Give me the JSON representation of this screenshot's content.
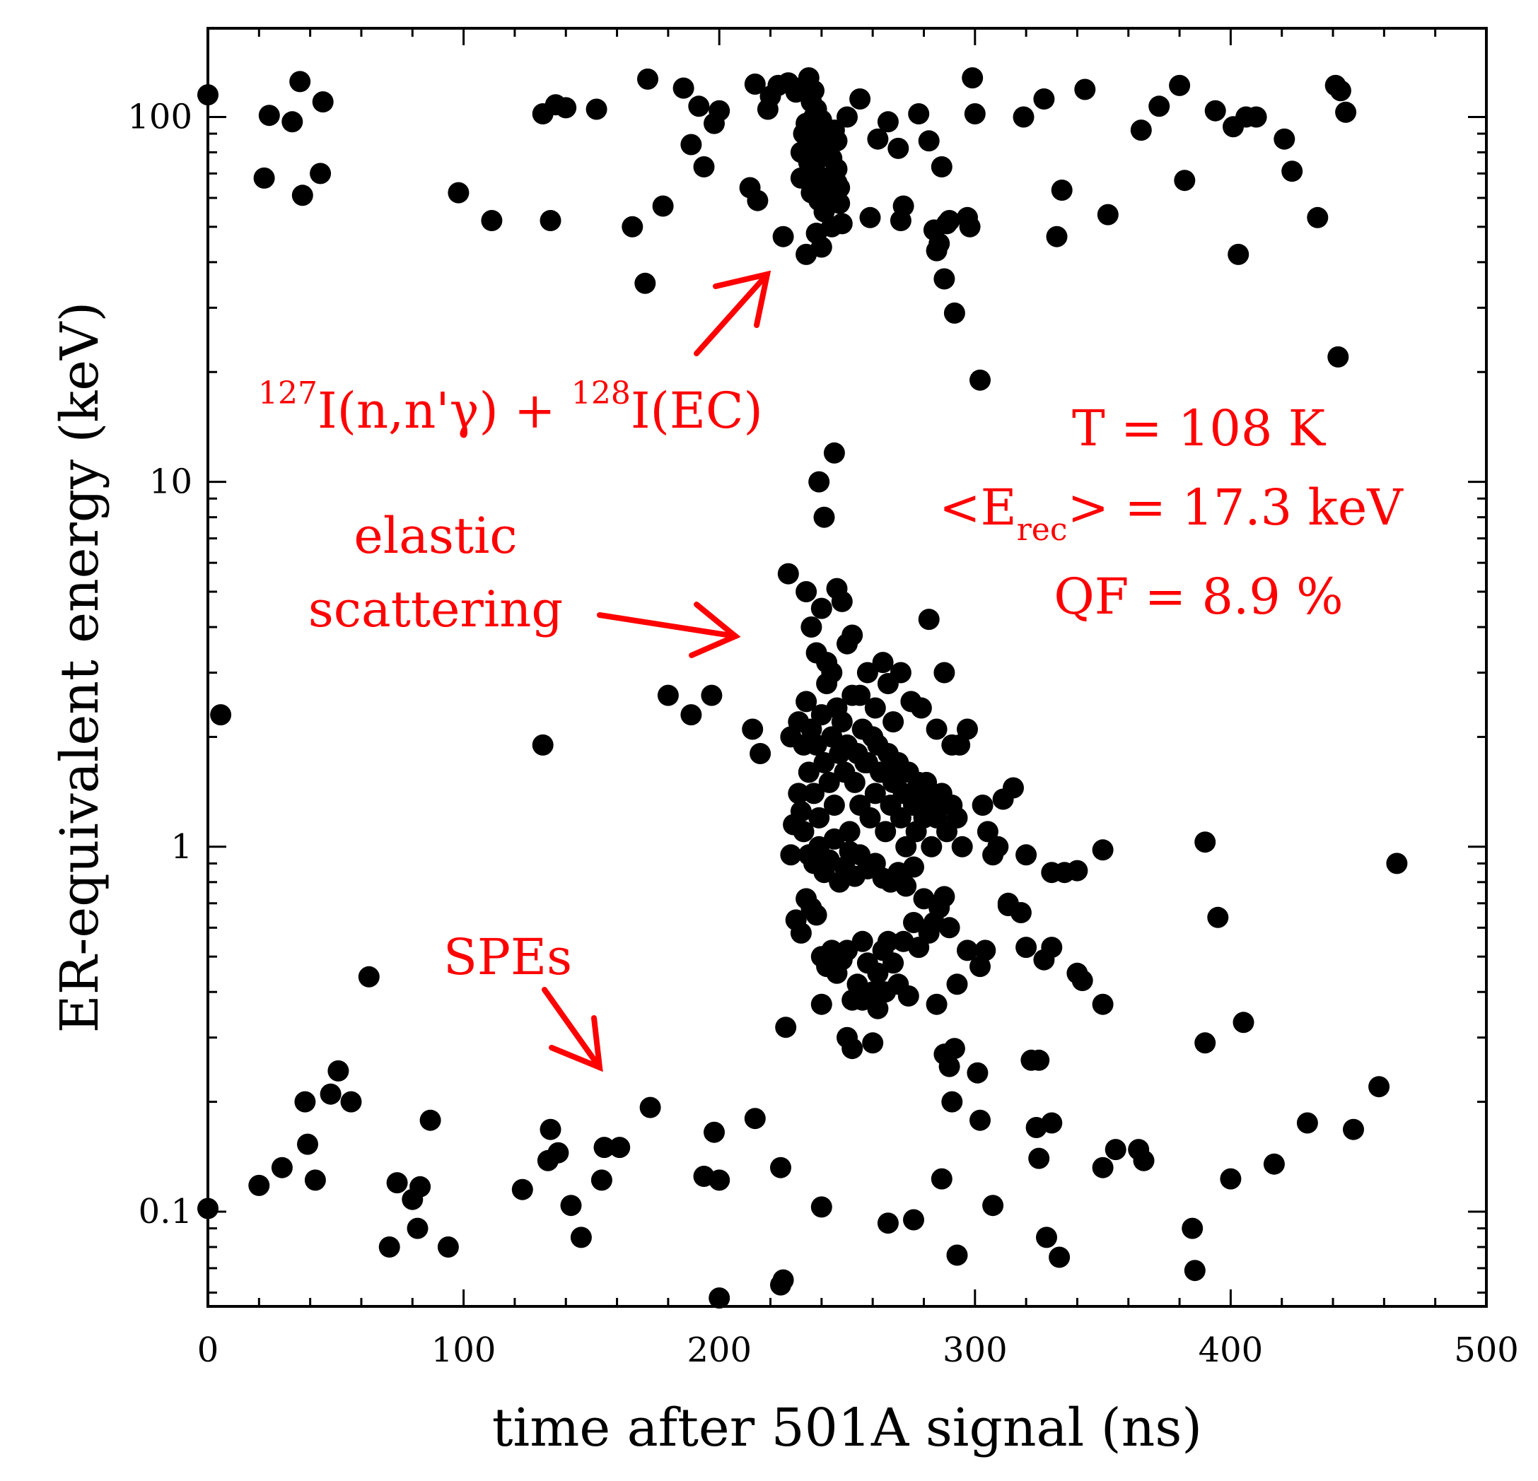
{
  "chart_data": {
    "type": "scatter",
    "title": "",
    "xlabel": "time after 501A signal (ns)",
    "ylabel": "ER-equivalent energy (keV)",
    "xlim": [
      0,
      500
    ],
    "ylim": [
      0.055,
      175
    ],
    "yscale": "log",
    "x_ticks": [
      0,
      100,
      200,
      300,
      400,
      500
    ],
    "x_tick_labels": [
      "0",
      "100",
      "200",
      "300",
      "400",
      "500"
    ],
    "y_ticks": [
      0.1,
      1,
      10,
      100
    ],
    "y_tick_labels": [
      "0.1",
      "1",
      "10",
      "100"
    ],
    "marker_color": "#000000",
    "annotation_color": "#ff0000",
    "annotations": {
      "inelastic": {
        "iso1": "127",
        "part1": "I(n,n'γ) + ",
        "iso2": "128",
        "part2": "I(EC)"
      },
      "elastic_line1": "elastic",
      "elastic_line2": "scattering",
      "spes": "SPEs",
      "temperature": "T = 108 K",
      "erec_prefix": "<E",
      "erec_sub": "rec",
      "erec_suffix": "> = 17.3 keV",
      "qf": "QF = 8.9 %"
    },
    "points": [
      [
        0,
        115
      ],
      [
        22,
        68
      ],
      [
        24,
        101
      ],
      [
        33,
        97
      ],
      [
        36,
        125
      ],
      [
        37,
        61
      ],
      [
        44,
        70
      ],
      [
        45,
        110
      ],
      [
        98,
        62
      ],
      [
        111,
        52
      ],
      [
        134,
        52
      ],
      [
        131,
        102
      ],
      [
        136,
        108
      ],
      [
        140,
        106
      ],
      [
        152,
        105
      ],
      [
        166,
        50
      ],
      [
        171,
        35
      ],
      [
        172,
        127
      ],
      [
        178,
        57
      ],
      [
        186,
        120
      ],
      [
        189,
        84
      ],
      [
        192,
        107
      ],
      [
        194,
        73
      ],
      [
        200,
        104
      ],
      [
        198,
        96
      ],
      [
        212,
        64
      ],
      [
        215,
        59
      ],
      [
        214,
        123
      ],
      [
        219,
        105
      ],
      [
        220,
        114
      ],
      [
        223,
        122
      ],
      [
        225,
        47
      ],
      [
        227,
        124
      ],
      [
        230,
        117
      ],
      [
        233,
        121
      ],
      [
        235,
        128
      ],
      [
        237,
        118
      ],
      [
        232,
        68
      ],
      [
        234,
        42
      ],
      [
        236,
        62
      ],
      [
        238,
        48
      ],
      [
        240,
        44
      ],
      [
        242,
        58
      ],
      [
        244,
        50
      ],
      [
        246,
        66
      ],
      [
        248,
        51
      ],
      [
        250,
        100
      ],
      [
        255,
        112
      ],
      [
        259,
        53
      ],
      [
        262,
        87
      ],
      [
        266,
        97
      ],
      [
        270,
        82
      ],
      [
        271,
        52
      ],
      [
        272,
        57
      ],
      [
        278,
        102
      ],
      [
        282,
        86
      ],
      [
        284,
        49
      ],
      [
        285,
        43
      ],
      [
        286,
        45
      ],
      [
        287,
        73
      ],
      [
        288,
        36
      ],
      [
        289,
        51
      ],
      [
        292,
        29
      ],
      [
        290,
        52
      ],
      [
        299,
        128
      ],
      [
        300,
        102
      ],
      [
        297,
        53
      ],
      [
        298,
        50
      ],
      [
        302,
        19
      ],
      [
        319,
        100
      ],
      [
        327,
        112
      ],
      [
        332,
        47
      ],
      [
        334,
        63
      ],
      [
        343,
        119
      ],
      [
        352,
        54
      ],
      [
        365,
        92
      ],
      [
        372,
        107
      ],
      [
        380,
        122
      ],
      [
        382,
        67
      ],
      [
        394,
        104
      ],
      [
        401,
        94
      ],
      [
        403,
        42
      ],
      [
        406,
        100
      ],
      [
        410,
        100
      ],
      [
        421,
        87
      ],
      [
        424,
        71
      ],
      [
        434,
        53
      ],
      [
        441,
        122
      ],
      [
        443,
        118
      ],
      [
        445,
        103
      ],
      [
        442,
        22
      ],
      [
        232,
        80
      ],
      [
        233,
        90
      ],
      [
        234,
        96
      ],
      [
        235,
        75
      ],
      [
        236,
        85
      ],
      [
        237,
        100
      ],
      [
        238,
        70
      ],
      [
        239,
        88
      ],
      [
        240,
        93
      ],
      [
        241,
        66
      ],
      [
        242,
        78
      ],
      [
        243,
        82
      ],
      [
        244,
        60
      ],
      [
        245,
        92
      ],
      [
        246,
        72
      ],
      [
        247,
        64
      ],
      [
        236,
        110
      ],
      [
        238,
        105
      ],
      [
        240,
        98
      ],
      [
        242,
        89
      ],
      [
        244,
        77
      ],
      [
        246,
        86
      ],
      [
        241,
        55
      ],
      [
        243,
        63
      ],
      [
        245,
        70
      ],
      [
        239,
        59
      ],
      [
        237,
        83
      ],
      [
        247,
        58
      ],
      [
        239,
        10
      ],
      [
        241,
        8
      ],
      [
        245,
        12
      ],
      [
        227,
        5.6
      ],
      [
        234,
        5
      ],
      [
        236,
        4
      ],
      [
        238,
        3.4
      ],
      [
        240,
        4.5
      ],
      [
        242,
        3.2
      ],
      [
        244,
        3
      ],
      [
        246,
        5.1
      ],
      [
        248,
        4.7
      ],
      [
        250,
        3.6
      ],
      [
        252,
        3.8
      ],
      [
        255,
        2.6
      ],
      [
        258,
        3
      ],
      [
        261,
        2.4
      ],
      [
        264,
        3.2
      ],
      [
        266,
        2.8
      ],
      [
        268,
        2.2
      ],
      [
        271,
        3
      ],
      [
        275,
        2.5
      ],
      [
        279,
        2.4
      ],
      [
        282,
        4.2
      ],
      [
        285,
        2.1
      ],
      [
        288,
        3.0
      ],
      [
        291,
        1.9
      ],
      [
        294,
        1.9
      ],
      [
        297,
        2.1
      ],
      [
        180,
        2.6
      ],
      [
        189,
        2.3
      ],
      [
        197,
        2.6
      ],
      [
        213,
        2.1
      ],
      [
        216,
        1.8
      ],
      [
        228,
        2
      ],
      [
        231,
        2.2
      ],
      [
        233,
        1.9
      ],
      [
        235,
        1.6
      ],
      [
        237,
        1.4
      ],
      [
        239,
        1.2
      ],
      [
        241,
        1.7
      ],
      [
        243,
        1.5
      ],
      [
        245,
        1.3
      ],
      [
        247,
        1.8
      ],
      [
        249,
        1.6
      ],
      [
        251,
        1.1
      ],
      [
        253,
        1.5
      ],
      [
        255,
        1.3
      ],
      [
        257,
        1.7
      ],
      [
        259,
        1.2
      ],
      [
        261,
        1.4
      ],
      [
        263,
        1.6
      ],
      [
        265,
        1.1
      ],
      [
        267,
        1.3
      ],
      [
        269,
        1.5
      ],
      [
        271,
        1.2
      ],
      [
        273,
        1.0
      ],
      [
        275,
        1.4
      ],
      [
        277,
        1.1
      ],
      [
        279,
        1.3
      ],
      [
        281,
        1.5
      ],
      [
        283,
        1.0
      ],
      [
        285,
        1.2
      ],
      [
        287,
        1.4
      ],
      [
        289,
        1.1
      ],
      [
        291,
        1.3
      ],
      [
        293,
        1.2
      ],
      [
        295,
        1.0
      ],
      [
        234,
        2.5
      ],
      [
        236,
        2.1
      ],
      [
        238,
        1.9
      ],
      [
        240,
        2.3
      ],
      [
        242,
        2.8
      ],
      [
        244,
        2.0
      ],
      [
        246,
        2.4
      ],
      [
        248,
        2.2
      ],
      [
        250,
        1.9
      ],
      [
        252,
        2.6
      ],
      [
        254,
        1.8
      ],
      [
        256,
        2.1
      ],
      [
        258,
        1.7
      ],
      [
        260,
        2.0
      ],
      [
        262,
        1.9
      ],
      [
        264,
        1.6
      ],
      [
        266,
        1.8
      ],
      [
        268,
        1.5
      ],
      [
        270,
        1.7
      ],
      [
        272,
        1.4
      ],
      [
        274,
        1.6
      ],
      [
        276,
        1.3
      ],
      [
        278,
        1.5
      ],
      [
        280,
        1.2
      ],
      [
        282,
        1.4
      ],
      [
        284,
        1.3
      ],
      [
        231,
        1.4
      ],
      [
        233,
        1.1
      ],
      [
        235,
        0.95
      ],
      [
        237,
        0.9
      ],
      [
        239,
        1.0
      ],
      [
        241,
        0.85
      ],
      [
        243,
        0.92
      ],
      [
        245,
        1.05
      ],
      [
        247,
        0.8
      ],
      [
        249,
        0.88
      ],
      [
        251,
        0.97
      ],
      [
        253,
        0.83
      ],
      [
        255,
        0.95
      ],
      [
        258,
        0.87
      ],
      [
        261,
        0.9
      ],
      [
        264,
        0.82
      ],
      [
        267,
        0.8
      ],
      [
        270,
        0.85
      ],
      [
        273,
        0.78
      ],
      [
        276,
        0.88
      ],
      [
        229,
        1.15
      ],
      [
        228,
        0.95
      ],
      [
        232,
        1.25
      ],
      [
        303,
        1.3
      ],
      [
        305,
        1.1
      ],
      [
        307,
        0.95
      ],
      [
        309,
        1.0
      ],
      [
        311,
        1.35
      ],
      [
        313,
        0.7
      ],
      [
        315,
        1.45
      ],
      [
        320,
        0.95
      ],
      [
        330,
        0.85
      ],
      [
        335,
        0.85
      ],
      [
        340,
        0.86
      ],
      [
        350,
        0.98
      ],
      [
        390,
        1.03
      ],
      [
        465,
        0.9
      ],
      [
        230,
        0.63
      ],
      [
        232,
        0.58
      ],
      [
        234,
        0.72
      ],
      [
        236,
        0.68
      ],
      [
        238,
        0.65
      ],
      [
        240,
        0.5
      ],
      [
        242,
        0.47
      ],
      [
        244,
        0.52
      ],
      [
        246,
        0.45
      ],
      [
        248,
        0.49
      ],
      [
        250,
        0.52
      ],
      [
        252,
        0.38
      ],
      [
        254,
        0.42
      ],
      [
        256,
        0.55
      ],
      [
        258,
        0.48
      ],
      [
        260,
        0.4
      ],
      [
        262,
        0.45
      ],
      [
        264,
        0.52
      ],
      [
        266,
        0.55
      ],
      [
        268,
        0.48
      ],
      [
        270,
        0.42
      ],
      [
        272,
        0.55
      ],
      [
        274,
        0.39
      ],
      [
        276,
        0.62
      ],
      [
        278,
        0.53
      ],
      [
        280,
        0.72
      ],
      [
        282,
        0.58
      ],
      [
        284,
        0.62
      ],
      [
        286,
        0.68
      ],
      [
        288,
        0.73
      ],
      [
        290,
        0.6
      ],
      [
        226,
        0.32
      ],
      [
        240,
        0.37
      ],
      [
        250,
        0.3
      ],
      [
        252,
        0.28
      ],
      [
        256,
        0.38
      ],
      [
        260,
        0.29
      ],
      [
        262,
        0.36
      ],
      [
        265,
        0.4
      ],
      [
        285,
        0.37
      ],
      [
        288,
        0.27
      ],
      [
        290,
        0.25
      ],
      [
        292,
        0.28
      ],
      [
        293,
        0.42
      ],
      [
        297,
        0.52
      ],
      [
        301,
        0.24
      ],
      [
        302,
        0.47
      ],
      [
        304,
        0.52
      ],
      [
        313,
        0.69
      ],
      [
        318,
        0.66
      ],
      [
        320,
        0.53
      ],
      [
        322,
        0.26
      ],
      [
        325,
        0.26
      ],
      [
        327,
        0.49
      ],
      [
        330,
        0.53
      ],
      [
        340,
        0.45
      ],
      [
        342,
        0.43
      ],
      [
        350,
        0.37
      ],
      [
        395,
        0.64
      ],
      [
        405,
        0.33
      ],
      [
        63,
        0.44
      ],
      [
        131,
        1.9
      ],
      [
        5,
        2.3
      ],
      [
        0,
        0.102
      ],
      [
        20,
        0.118
      ],
      [
        29,
        0.132
      ],
      [
        38,
        0.2
      ],
      [
        39,
        0.153
      ],
      [
        42,
        0.122
      ],
      [
        48,
        0.21
      ],
      [
        51,
        0.243
      ],
      [
        56,
        0.2
      ],
      [
        71,
        0.08
      ],
      [
        74,
        0.12
      ],
      [
        80,
        0.108
      ],
      [
        82,
        0.09
      ],
      [
        83,
        0.117
      ],
      [
        87,
        0.178
      ],
      [
        94,
        0.08
      ],
      [
        123,
        0.115
      ],
      [
        133,
        0.138
      ],
      [
        134,
        0.168
      ],
      [
        137,
        0.145
      ],
      [
        142,
        0.104
      ],
      [
        146,
        0.085
      ],
      [
        154,
        0.122
      ],
      [
        155,
        0.15
      ],
      [
        161,
        0.15
      ],
      [
        173,
        0.193
      ],
      [
        194,
        0.125
      ],
      [
        198,
        0.165
      ],
      [
        200,
        0.122
      ],
      [
        214,
        0.18
      ],
      [
        224,
        0.132
      ],
      [
        224,
        0.063
      ],
      [
        225,
        0.065
      ],
      [
        240,
        0.103
      ],
      [
        266,
        0.093
      ],
      [
        276,
        0.095
      ],
      [
        287,
        0.123
      ],
      [
        291,
        0.2
      ],
      [
        293,
        0.076
      ],
      [
        302,
        0.178
      ],
      [
        307,
        0.104
      ],
      [
        324,
        0.17
      ],
      [
        325,
        0.14
      ],
      [
        328,
        0.085
      ],
      [
        330,
        0.175
      ],
      [
        333,
        0.075
      ],
      [
        350,
        0.132
      ],
      [
        355,
        0.148
      ],
      [
        364,
        0.148
      ],
      [
        366,
        0.138
      ],
      [
        385,
        0.09
      ],
      [
        386,
        0.069
      ],
      [
        400,
        0.123
      ],
      [
        417,
        0.135
      ],
      [
        430,
        0.175
      ],
      [
        448,
        0.168
      ],
      [
        458,
        0.22
      ],
      [
        200,
        0.058
      ],
      [
        390,
        0.29
      ]
    ]
  }
}
